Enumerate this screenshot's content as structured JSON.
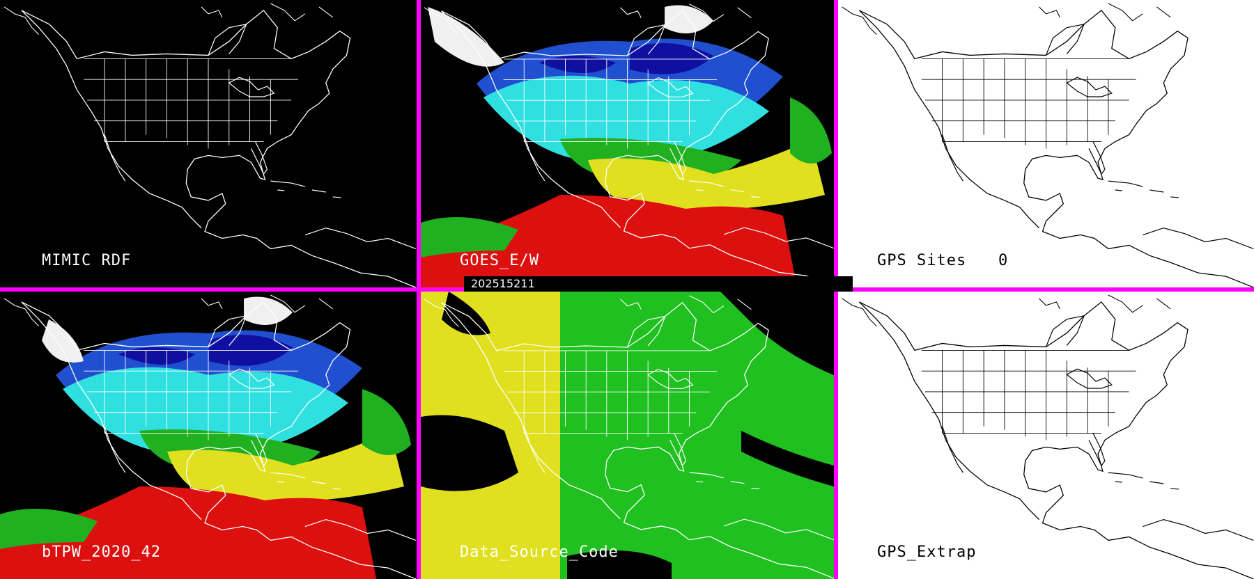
{
  "panels": [
    {
      "id": "mimic_rdf",
      "label": "MIMIC RDF",
      "background": "black"
    },
    {
      "id": "goes_ew",
      "label": "GOES_E/W",
      "background": "black"
    },
    {
      "id": "gps_sites",
      "label": "GPS Sites",
      "count": "0",
      "background": "white"
    },
    {
      "id": "btpw",
      "label": "bTPW_2020_42",
      "background": "black"
    },
    {
      "id": "data_source",
      "label": "Data_Source_Code",
      "background": "black"
    },
    {
      "id": "gps_extrap",
      "label": "GPS_Extrap",
      "background": "white"
    }
  ],
  "timestamp": "202515211",
  "colors": {
    "divider": "#ff00ff",
    "tpw_palette": [
      "#f0f0f0",
      "#1010a0",
      "#2050d0",
      "#30e0e0",
      "#20b020",
      "#e0e020",
      "#dd1010"
    ],
    "source_codes": [
      "#e0e020",
      "#20c020"
    ]
  }
}
